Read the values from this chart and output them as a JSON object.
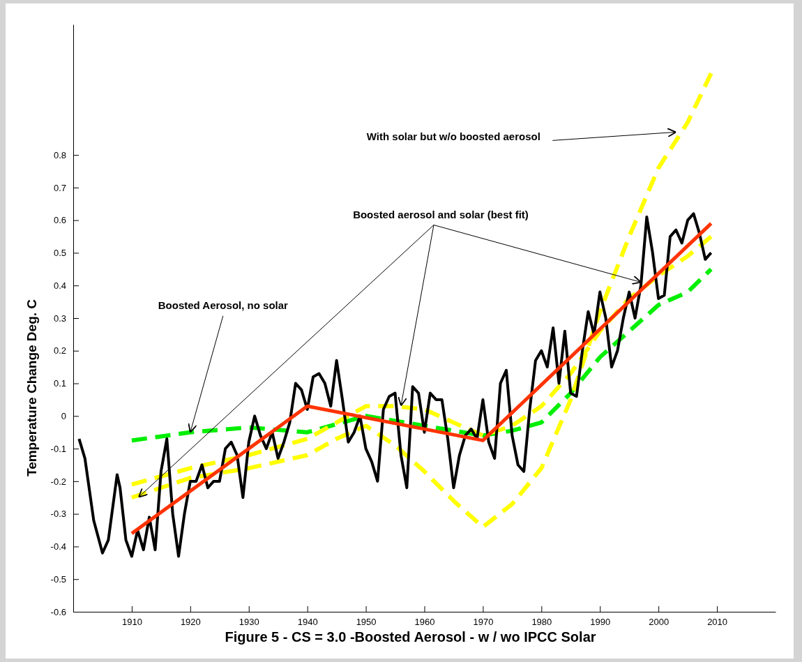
{
  "chart_data": {
    "type": "line",
    "ylabel": "Temperature Change Deg. C",
    "xlabel": "Figure 5  - CS = 3.0 -Boosted Aerosol - w / wo IPCC Solar",
    "xlim": [
      1900,
      2020
    ],
    "xticks": [
      1910,
      1920,
      1930,
      1940,
      1950,
      1960,
      1970,
      1980,
      1990,
      2000,
      2010
    ],
    "ylim": [
      -0.6,
      1.2
    ],
    "yticks": [
      -0.6,
      -0.5,
      -0.4,
      -0.3,
      -0.2,
      -0.1,
      0,
      0.1,
      0.2,
      0.3,
      0.4,
      0.5,
      0.6,
      0.7,
      0.8
    ],
    "series": [
      {
        "color": "#000000",
        "line_style": "solid",
        "x": [
          1901,
          1902,
          1903.5,
          1905,
          1906,
          1907.5,
          1908,
          1909,
          1910,
          1911,
          1912,
          1913,
          1914,
          1915,
          1916,
          1917,
          1918,
          1919,
          1920,
          1921,
          1922,
          1923,
          1924,
          1925,
          1926,
          1927,
          1928,
          1929,
          1930,
          1931,
          1932,
          1933,
          1934,
          1935,
          1936,
          1937,
          1938,
          1939,
          1940,
          1941,
          1942,
          1943,
          1944,
          1945,
          1946,
          1947,
          1948,
          1949,
          1950,
          1951,
          1952,
          1953,
          1954,
          1955,
          1956,
          1957,
          1958,
          1959,
          1960,
          1961,
          1962,
          1963,
          1964,
          1965,
          1966,
          1967,
          1968,
          1969,
          1970,
          1971,
          1972,
          1973,
          1974,
          1975,
          1976,
          1977,
          1978,
          1979,
          1980,
          1981,
          1982,
          1983,
          1984,
          1985,
          1986,
          1987,
          1988,
          1989,
          1990,
          1991,
          1992,
          1993,
          1994,
          1995,
          1996,
          1997,
          1998,
          1999,
          2000,
          2001,
          2002,
          2003,
          2004,
          2005,
          2006,
          2007,
          2008,
          2009
        ],
        "values": [
          -0.07,
          -0.13,
          -0.32,
          -0.42,
          -0.38,
          -0.18,
          -0.22,
          -0.38,
          -0.43,
          -0.35,
          -0.41,
          -0.31,
          -0.41,
          -0.17,
          -0.07,
          -0.3,
          -0.43,
          -0.3,
          -0.2,
          -0.2,
          -0.15,
          -0.22,
          -0.2,
          -0.2,
          -0.1,
          -0.08,
          -0.12,
          -0.25,
          -0.08,
          0,
          -0.06,
          -0.1,
          -0.05,
          -0.13,
          -0.08,
          -0.02,
          0.1,
          0.08,
          0.02,
          0.12,
          0.13,
          0.1,
          0.03,
          0.17,
          0.05,
          -0.08,
          -0.05,
          0,
          -0.1,
          -0.14,
          -0.2,
          0.02,
          0.06,
          0.07,
          -0.12,
          -0.22,
          0.09,
          0.07,
          -0.05,
          0.07,
          0.05,
          0.05,
          -0.07,
          -0.22,
          -0.12,
          -0.06,
          -0.04,
          -0.07,
          0.05,
          -0.08,
          -0.13,
          0.1,
          0.14,
          -0.06,
          -0.15,
          -0.17,
          0.02,
          0.17,
          0.2,
          0.15,
          0.27,
          0.1,
          0.26,
          0.07,
          0.06,
          0.2,
          0.32,
          0.25,
          0.38,
          0.3,
          0.15,
          0.2,
          0.3,
          0.38,
          0.3,
          0.4,
          0.61,
          0.5,
          0.36,
          0.37,
          0.55,
          0.57,
          0.53,
          0.6,
          0.62,
          0.56,
          0.48,
          0.5
        ]
      },
      {
        "color": "#00ee00",
        "line_style": "dashed",
        "x": [
          1910,
          1920,
          1930,
          1940,
          1950,
          1960,
          1970,
          1975,
          1980,
          1985,
          1990,
          1995,
          2000,
          2005,
          2009
        ],
        "values": [
          -0.075,
          -0.05,
          -0.035,
          -0.05,
          0,
          -0.03,
          -0.06,
          -0.045,
          -0.02,
          0.07,
          0.18,
          0.26,
          0.34,
          0.38,
          0.45
        ]
      },
      {
        "color": "#ffff00",
        "line_style": "dashed",
        "x": [
          1910,
          1920,
          1930,
          1940,
          1945,
          1950,
          1955,
          1960,
          1965,
          1970,
          1975,
          1980,
          1985,
          1990,
          1995,
          2000,
          2005,
          2009
        ],
        "values": [
          -0.25,
          -0.19,
          -0.16,
          -0.12,
          -0.07,
          -0.03,
          -0.09,
          -0.17,
          -0.26,
          -0.34,
          -0.27,
          -0.16,
          0.05,
          0.32,
          0.55,
          0.76,
          0.9,
          1.05
        ]
      },
      {
        "color": "#ffff00",
        "line_style": "dashed",
        "x": [
          1910,
          1920,
          1930,
          1940,
          1945,
          1950,
          1955,
          1960,
          1965,
          1970,
          1975,
          1980,
          1985,
          1990,
          1995,
          2000,
          2005,
          2009
        ],
        "values": [
          -0.21,
          -0.16,
          -0.12,
          -0.07,
          -0.02,
          0.03,
          0.03,
          0.02,
          -0.02,
          -0.06,
          -0.03,
          0.03,
          0.13,
          0.26,
          0.36,
          0.43,
          0.49,
          0.55
        ]
      },
      {
        "color": "#ff3300",
        "line_style": "solid",
        "x": [
          1910,
          1940,
          1970,
          2009
        ],
        "values": [
          -0.36,
          0.03,
          -0.075,
          0.59
        ]
      }
    ],
    "annotations": [
      {
        "text": "Boosted Aerosol, no solar",
        "x": 1920,
        "y": -0.05
      },
      {
        "text": "Boosted aerosol and solar (best fit)",
        "x": 1997,
        "y": 0.41
      },
      {
        "text": "With solar but w/o boosted aerosol",
        "x": 2003,
        "y": 0.87
      }
    ]
  }
}
